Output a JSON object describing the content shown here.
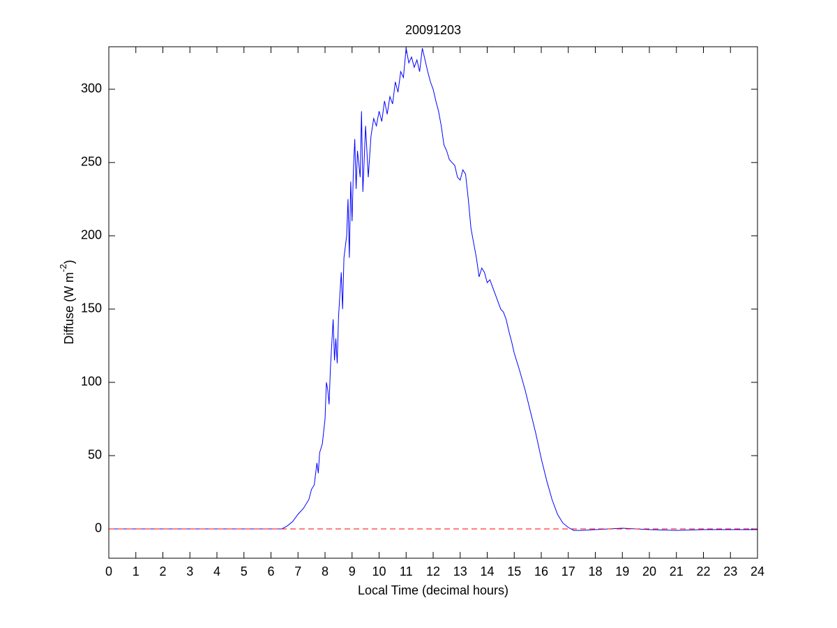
{
  "chart_data": {
    "type": "line",
    "title": "20091203",
    "x_label": "Local Time (decimal hours)",
    "y_label": {
      "text": "Diffuse (W m",
      "superscript": "-2",
      "suffix": ")"
    },
    "color": "#0000ff",
    "reference_line": {
      "y": 0,
      "color": "#ff0000",
      "style": "dashed"
    },
    "xlim": [
      0,
      24
    ],
    "ylim": [
      -20,
      329
    ],
    "xticks": [
      0,
      1,
      2,
      3,
      4,
      5,
      6,
      7,
      8,
      9,
      10,
      11,
      12,
      13,
      14,
      15,
      16,
      17,
      18,
      19,
      20,
      21,
      22,
      23,
      24
    ],
    "yticks": [
      0,
      50,
      100,
      150,
      200,
      250,
      300
    ],
    "x": [
      0,
      1,
      2,
      3,
      4,
      5,
      6,
      6.4,
      6.6,
      6.8,
      7.0,
      7.2,
      7.4,
      7.5,
      7.6,
      7.7,
      7.75,
      7.8,
      7.9,
      8.0,
      8.05,
      8.1,
      8.15,
      8.2,
      8.3,
      8.35,
      8.4,
      8.45,
      8.5,
      8.6,
      8.65,
      8.7,
      8.8,
      8.85,
      8.9,
      8.95,
      9.0,
      9.05,
      9.1,
      9.15,
      9.2,
      9.3,
      9.35,
      9.4,
      9.5,
      9.6,
      9.7,
      9.8,
      9.9,
      10.0,
      10.1,
      10.2,
      10.3,
      10.4,
      10.5,
      10.6,
      10.7,
      10.8,
      10.9,
      11.0,
      11.1,
      11.2,
      11.3,
      11.4,
      11.5,
      11.6,
      11.7,
      11.8,
      11.9,
      12.0,
      12.1,
      12.2,
      12.3,
      12.4,
      12.5,
      12.6,
      12.7,
      12.8,
      12.9,
      13.0,
      13.1,
      13.2,
      13.3,
      13.4,
      13.5,
      13.6,
      13.7,
      13.8,
      13.9,
      14.0,
      14.1,
      14.2,
      14.3,
      14.4,
      14.5,
      14.6,
      14.7,
      14.8,
      14.9,
      15.0,
      15.2,
      15.4,
      15.6,
      15.8,
      16.0,
      16.2,
      16.4,
      16.6,
      16.8,
      17.0,
      17.2,
      17.5,
      18,
      19,
      20,
      21,
      22,
      23,
      24
    ],
    "values": [
      0,
      0,
      0,
      0,
      0,
      0,
      0,
      0,
      2,
      5,
      10,
      14,
      20,
      27,
      30,
      45,
      38,
      52,
      58,
      75,
      100,
      95,
      85,
      110,
      143,
      115,
      130,
      113,
      145,
      175,
      150,
      185,
      200,
      225,
      185,
      237,
      210,
      245,
      266,
      232,
      258,
      240,
      285,
      230,
      275,
      240,
      268,
      280,
      275,
      285,
      278,
      292,
      283,
      295,
      290,
      305,
      298,
      312,
      308,
      328,
      318,
      322,
      315,
      320,
      312,
      328,
      320,
      312,
      305,
      300,
      292,
      285,
      275,
      262,
      258,
      252,
      250,
      248,
      240,
      238,
      245,
      242,
      225,
      205,
      195,
      185,
      172,
      178,
      175,
      168,
      170,
      165,
      160,
      155,
      150,
      148,
      143,
      135,
      128,
      120,
      108,
      95,
      80,
      65,
      48,
      33,
      20,
      10,
      4,
      1,
      -1,
      -1,
      -0.5,
      0.5,
      -0.5,
      -1,
      -0.5,
      -0.5,
      -0.5
    ]
  }
}
